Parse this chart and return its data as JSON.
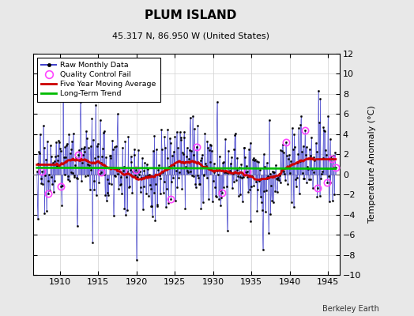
{
  "title": "PLUM ISLAND",
  "subtitle": "45.317 N, 86.950 W (United States)",
  "ylabel": "Temperature Anomaly (°C)",
  "xlabel_credit": "Berkeley Earth",
  "xlim": [
    1906.5,
    1946.5
  ],
  "ylim": [
    -10,
    12
  ],
  "yticks": [
    -10,
    -8,
    -6,
    -4,
    -2,
    0,
    2,
    4,
    6,
    8,
    10,
    12
  ],
  "xticks": [
    1910,
    1915,
    1920,
    1925,
    1930,
    1935,
    1940,
    1945
  ],
  "background_color": "#e8e8e8",
  "plot_bg_color": "#ffffff",
  "raw_line_color": "#4444cc",
  "raw_marker_color": "#000000",
  "moving_avg_color": "#cc0000",
  "trend_color": "#00bb00",
  "qc_fail_color": "#ff44ff",
  "seed": 17
}
